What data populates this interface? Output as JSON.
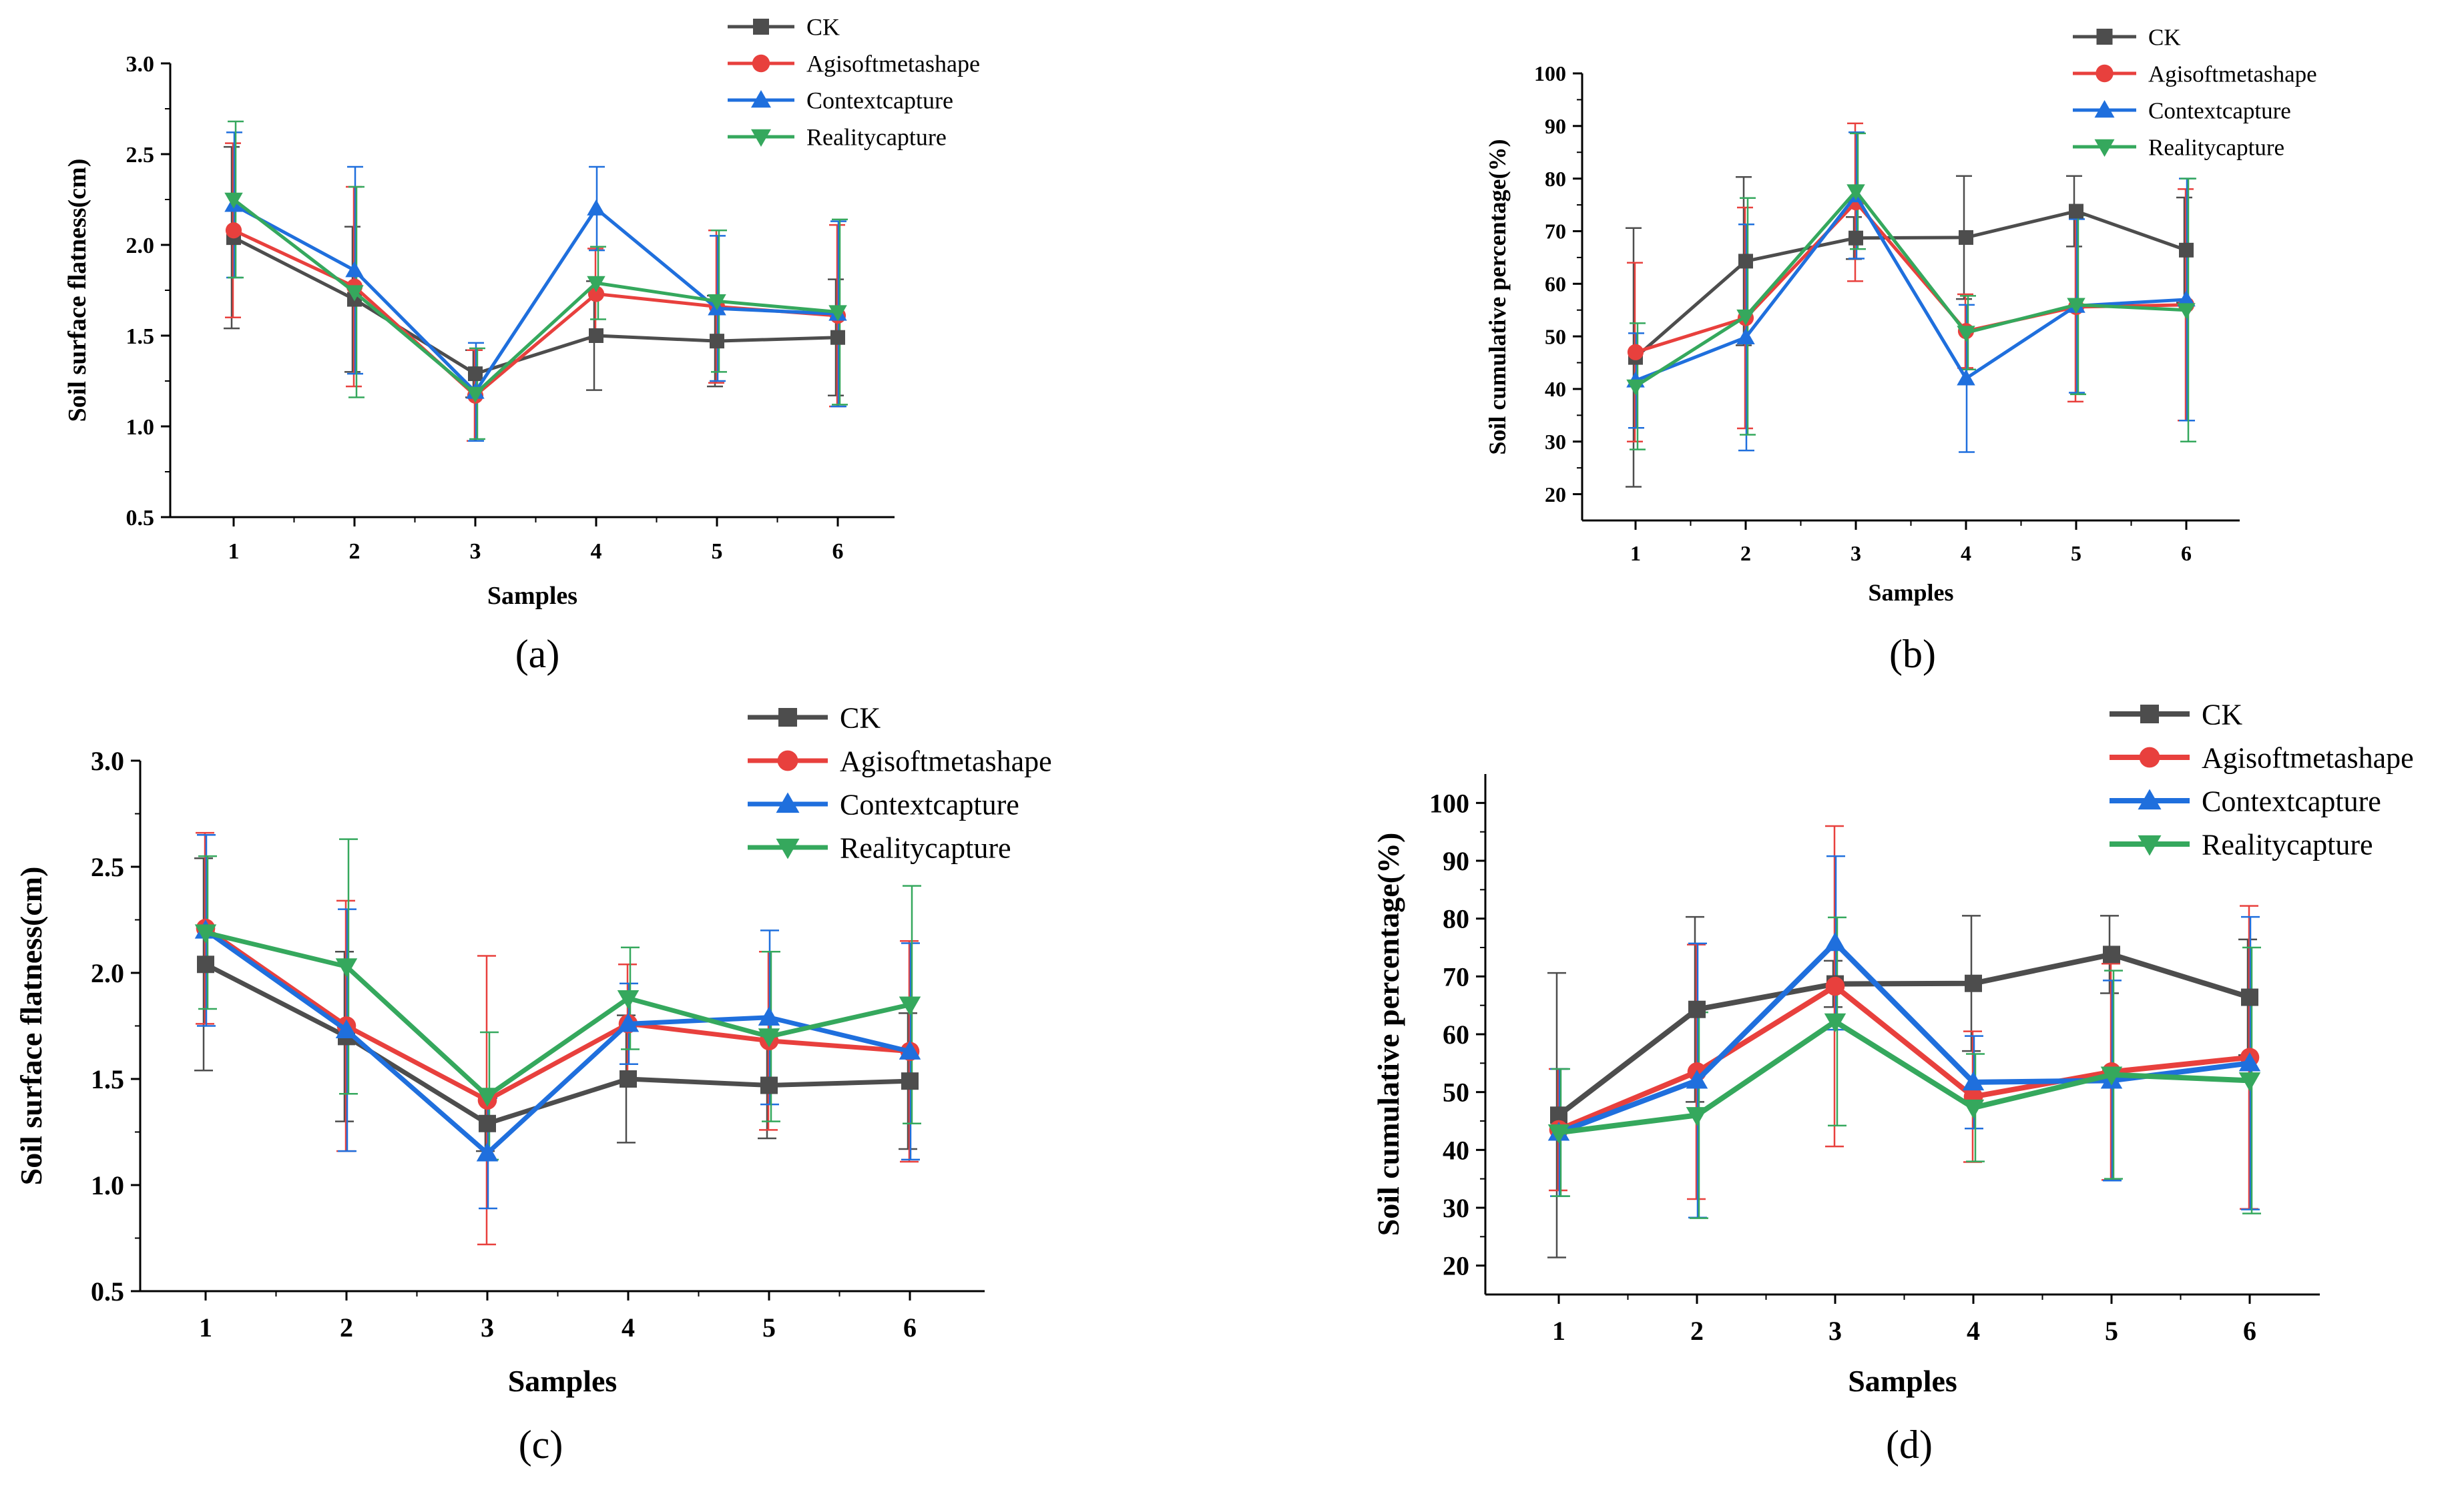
{
  "colors": {
    "CK": "#4d4d4d",
    "Agisoftmetashape": "#e8403d",
    "Contextcapture": "#1f6fdd",
    "Realitycapture": "#35a85d"
  },
  "chart_data": [
    {
      "panel_label": "(a)",
      "type": "line",
      "ylabel": "Soil surface flatness(cm)",
      "xlabel": "Samples",
      "categories": [
        "1",
        "2",
        "3",
        "4",
        "5",
        "6"
      ],
      "ylim": [
        0.5,
        3.0
      ],
      "yticks": [
        0.5,
        1.0,
        1.5,
        2.0,
        2.5,
        3.0
      ],
      "ytick_labels": [
        "0.5",
        "1.0",
        "1.5",
        "2.0",
        "2.5",
        "3.0"
      ],
      "legend_position": "top-center",
      "series": [
        {
          "name": "CK",
          "marker": "square",
          "values": [
            2.04,
            1.7,
            1.29,
            1.5,
            1.47,
            1.49
          ],
          "errors": [
            0.5,
            0.4,
            0.13,
            0.3,
            0.25,
            0.32
          ]
        },
        {
          "name": "Agisoftmetashape",
          "marker": "circle",
          "values": [
            2.08,
            1.77,
            1.17,
            1.73,
            1.66,
            1.61
          ],
          "errors": [
            0.48,
            0.55,
            0.25,
            0.25,
            0.42,
            0.5
          ]
        },
        {
          "name": "Contextcapture",
          "marker": "triangle-up",
          "values": [
            2.22,
            1.86,
            1.19,
            2.2,
            1.65,
            1.62
          ],
          "errors": [
            0.4,
            0.57,
            0.27,
            0.23,
            0.4,
            0.51
          ]
        },
        {
          "name": "Realitycapture",
          "marker": "triangle-down",
          "values": [
            2.25,
            1.74,
            1.18,
            1.79,
            1.69,
            1.63
          ],
          "errors": [
            0.43,
            0.58,
            0.25,
            0.2,
            0.39,
            0.51
          ]
        }
      ]
    },
    {
      "panel_label": "(b)",
      "type": "line",
      "ylabel": "Soil cumulative percentage(%)",
      "xlabel": "Samples",
      "categories": [
        "1",
        "2",
        "3",
        "4",
        "5",
        "6"
      ],
      "ylim": [
        15,
        100
      ],
      "yticks": [
        20,
        30,
        40,
        50,
        60,
        70,
        80,
        90,
        100
      ],
      "ytick_labels": [
        "20",
        "30",
        "40",
        "50",
        "60",
        "70",
        "80",
        "90",
        "100"
      ],
      "legend_position": "top-right",
      "series": [
        {
          "name": "CK",
          "marker": "square",
          "values": [
            46.0,
            64.3,
            68.7,
            68.8,
            73.8,
            66.4
          ],
          "errors": [
            24.6,
            16.0,
            4.0,
            11.7,
            6.7,
            10.0
          ]
        },
        {
          "name": "Agisoftmetashape",
          "marker": "circle",
          "values": [
            47.0,
            53.5,
            75.5,
            51.0,
            55.6,
            56.0
          ],
          "errors": [
            17.0,
            21.0,
            15.0,
            7.0,
            18.0,
            22.0
          ]
        },
        {
          "name": "Contextcapture",
          "marker": "triangle-up",
          "values": [
            41.6,
            49.8,
            76.8,
            42.0,
            55.8,
            57.0
          ],
          "errors": [
            9.0,
            21.5,
            12.0,
            14.0,
            16.5,
            23.0
          ]
        },
        {
          "name": "Realitycapture",
          "marker": "triangle-down",
          "values": [
            40.5,
            53.8,
            77.6,
            50.7,
            56.0,
            55.0
          ],
          "errors": [
            12.0,
            22.5,
            11.0,
            7.0,
            17.0,
            25.0
          ]
        }
      ]
    },
    {
      "panel_label": "(c)",
      "type": "line",
      "ylabel": "Soil surface flatness(cm)",
      "xlabel": "Samples",
      "categories": [
        "1",
        "2",
        "3",
        "4",
        "5",
        "6"
      ],
      "ylim": [
        0.5,
        3.0
      ],
      "yticks": [
        0.5,
        1.0,
        1.5,
        2.0,
        2.5,
        3.0
      ],
      "ytick_labels": [
        "0.5",
        "1.0",
        "1.5",
        "2.0",
        "2.5",
        "3.0"
      ],
      "legend_position": "top-right",
      "series": [
        {
          "name": "CK",
          "marker": "square",
          "values": [
            2.04,
            1.7,
            1.29,
            1.5,
            1.47,
            1.49
          ],
          "errors": [
            0.5,
            0.4,
            0.13,
            0.3,
            0.25,
            0.32
          ]
        },
        {
          "name": "Agisoftmetashape",
          "marker": "circle",
          "values": [
            2.21,
            1.75,
            1.4,
            1.76,
            1.68,
            1.63
          ],
          "errors": [
            0.45,
            0.59,
            0.68,
            0.28,
            0.42,
            0.52
          ]
        },
        {
          "name": "Contextcapture",
          "marker": "triangle-up",
          "values": [
            2.2,
            1.73,
            1.15,
            1.76,
            1.79,
            1.63
          ],
          "errors": [
            0.45,
            0.57,
            0.26,
            0.19,
            0.41,
            0.51
          ]
        },
        {
          "name": "Realitycapture",
          "marker": "triangle-down",
          "values": [
            2.19,
            2.03,
            1.42,
            1.88,
            1.7,
            1.85
          ],
          "errors": [
            0.36,
            0.6,
            0.3,
            0.24,
            0.4,
            0.56
          ]
        }
      ]
    },
    {
      "panel_label": "(d)",
      "type": "line",
      "ylabel": "Soil cumulative percentage(%)",
      "xlabel": "Samples",
      "categories": [
        "1",
        "2",
        "3",
        "4",
        "5",
        "6"
      ],
      "ylim": [
        15,
        105
      ],
      "yticks": [
        20,
        30,
        40,
        50,
        60,
        70,
        80,
        90,
        100
      ],
      "ytick_labels": [
        "20",
        "30",
        "40",
        "50",
        "60",
        "70",
        "80",
        "90",
        "100"
      ],
      "legend_position": "top-right",
      "series": [
        {
          "name": "CK",
          "marker": "square",
          "values": [
            46.0,
            64.3,
            68.7,
            68.8,
            73.8,
            66.4
          ],
          "errors": [
            24.6,
            16.0,
            4.0,
            11.7,
            6.7,
            10.0
          ]
        },
        {
          "name": "Agisoftmetashape",
          "marker": "circle",
          "values": [
            43.5,
            53.5,
            68.3,
            49.2,
            53.5,
            56.0
          ],
          "errors": [
            10.5,
            22.0,
            27.7,
            11.3,
            18.7,
            26.2
          ]
        },
        {
          "name": "Contextcapture",
          "marker": "triangle-up",
          "values": [
            43.0,
            52.0,
            75.8,
            51.7,
            52.0,
            55.0
          ],
          "errors": [
            11.0,
            23.7,
            15.0,
            8.0,
            17.3,
            25.3
          ]
        },
        {
          "name": "Realitycapture",
          "marker": "triangle-down",
          "values": [
            43.0,
            46.0,
            62.2,
            47.3,
            53.0,
            52.0
          ],
          "errors": [
            11.0,
            17.8,
            18.0,
            9.3,
            18.0,
            23.0
          ]
        }
      ]
    }
  ]
}
